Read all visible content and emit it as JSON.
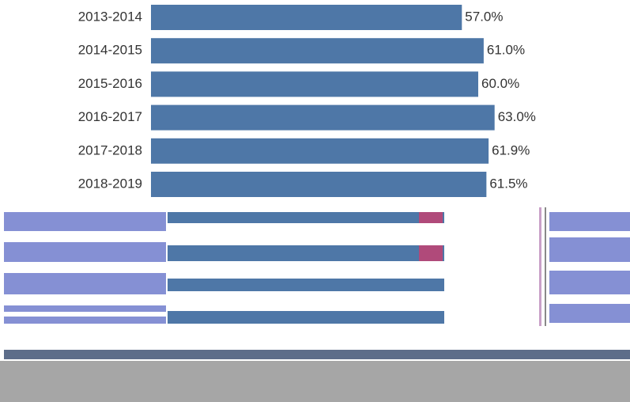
{
  "chart_data": {
    "type": "bar",
    "orientation": "horizontal",
    "categories": [
      "2013-2014",
      "2014-2015",
      "2015-2016",
      "2016-2017",
      "2017-2018",
      "2018-2019"
    ],
    "values": [
      57.0,
      61.0,
      60.0,
      63.0,
      61.9,
      61.5
    ],
    "value_labels": [
      "57.0%",
      "61.0%",
      "60.0%",
      "63.0%",
      "61.9%",
      "61.5%"
    ],
    "color": "#4e77a7"
  }
}
